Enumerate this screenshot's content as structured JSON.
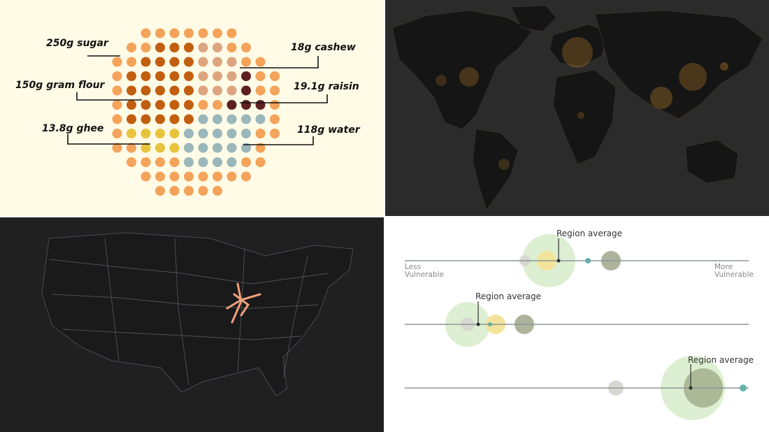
{
  "recipe": {
    "ingredients": [
      {
        "label": "250g sugar",
        "color": "#f4a35a"
      },
      {
        "label": "150g gram flour",
        "color": "#c15e10"
      },
      {
        "label": "13.8g ghee",
        "color": "#e8c43e"
      },
      {
        "label": "18g cashew",
        "color": "#dca580"
      },
      {
        "label": "19.1g raisin",
        "color": "#5e2121"
      },
      {
        "label": "118g water",
        "color": "#9ab7bb"
      }
    ]
  },
  "world_map": {
    "background": "#2b2b2b",
    "land_color": "#151515",
    "highlight_color": "#c8892a"
  },
  "us_map": {
    "background": "#202020",
    "road_color": "#6a6a75",
    "highlight_color": "#f0a07a"
  },
  "dot_plot": {
    "rows": [
      {
        "marker_label": "Region average",
        "left_label_line1": "Less",
        "left_label_line2": "Vulnerable",
        "right_label_line1": "More",
        "right_label_line2": "Vulnerable"
      },
      {
        "marker_label": "Region average"
      },
      {
        "marker_label": "Region average"
      }
    ],
    "colors": {
      "green": "#cfe8bf",
      "yellow": "#f3e39a",
      "teal": "#5bb8b5",
      "olive": "#8c9470",
      "grey": "#d8d8d0"
    }
  }
}
